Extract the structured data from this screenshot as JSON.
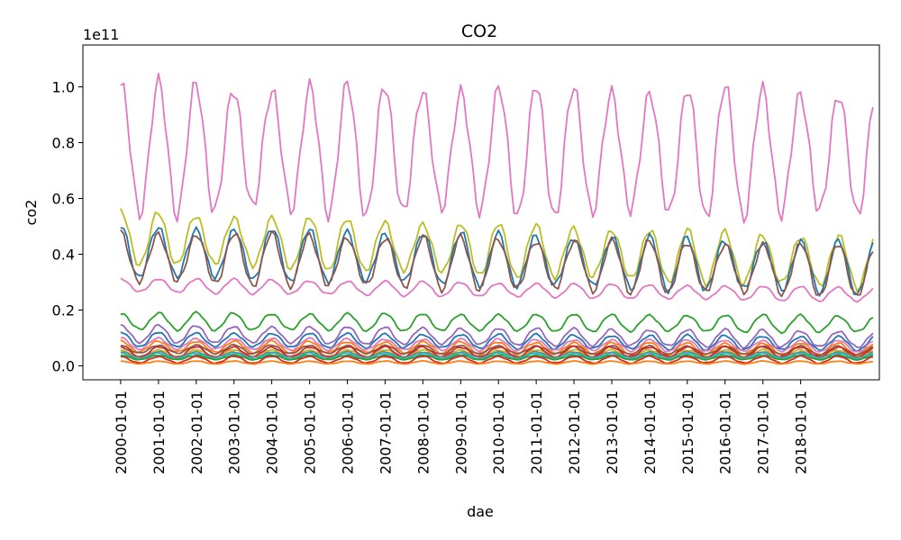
{
  "chart_data": {
    "type": "line",
    "title": "CO2",
    "xlabel": "dae",
    "ylabel": "co2",
    "y_offset_label": "1e11",
    "y_multiplier": 100000000000.0,
    "ylim": [
      -0.05,
      1.15
    ],
    "yticks": [
      0.0,
      0.2,
      0.4,
      0.6,
      0.8,
      1.0
    ],
    "xlim": [
      "1999-01-01",
      "2020-02-01"
    ],
    "xticks": [
      "2000-01-01",
      "2001-01-01",
      "2002-01-01",
      "2003-01-01",
      "2004-01-01",
      "2005-01-01",
      "2006-01-01",
      "2007-01-01",
      "2008-01-01",
      "2009-01-01",
      "2010-01-01",
      "2011-01-01",
      "2012-01-01",
      "2013-01-01",
      "2014-01-01",
      "2015-01-01",
      "2016-01-01",
      "2017-01-01",
      "2018-01-01"
    ],
    "x_start": "2000-01-01",
    "x_end": "2019-12-01",
    "x_frequency": "monthly",
    "grid": false,
    "legend": false,
    "series": [
      {
        "color": "#e377c2",
        "base": 0.78,
        "amp": 0.225,
        "trend": -0.02
      },
      {
        "color": "#bcbd22",
        "base": 0.46,
        "amp": 0.09,
        "trend": -0.09
      },
      {
        "color": "#1f77b4",
        "base": 0.41,
        "amp": 0.09,
        "trend": -0.06
      },
      {
        "color": "#8c564b",
        "base": 0.39,
        "amp": 0.09,
        "trend": -0.05
      },
      {
        "color": "#e377c2",
        "base": 0.29,
        "amp": 0.025,
        "trend": -0.035
      },
      {
        "color": "#2ca02c",
        "base": 0.16,
        "amp": 0.03,
        "trend": -0.01
      },
      {
        "color": "#9467bd",
        "base": 0.115,
        "amp": 0.03,
        "trend": -0.02
      },
      {
        "color": "#1f77b4",
        "base": 0.095,
        "amp": 0.025,
        "trend": -0.015
      },
      {
        "color": "#e377c2",
        "base": 0.08,
        "amp": 0.02,
        "trend": -0.01
      },
      {
        "color": "#ff7f0e",
        "base": 0.07,
        "amp": 0.02,
        "trend": -0.01
      },
      {
        "color": "#8c564b",
        "base": 0.06,
        "amp": 0.015,
        "trend": -0.005
      },
      {
        "color": "#bcbd22",
        "base": 0.045,
        "amp": 0.012,
        "trend": 0.0
      },
      {
        "color": "#d62728",
        "base": 0.05,
        "amp": 0.018,
        "trend": 0.0
      },
      {
        "color": "#7f7f7f",
        "base": 0.04,
        "amp": 0.01,
        "trend": 0.0
      },
      {
        "color": "#17becf",
        "base": 0.035,
        "amp": 0.01,
        "trend": 0.0
      },
      {
        "color": "#2ca02c",
        "base": 0.03,
        "amp": 0.008,
        "trend": 0.0
      },
      {
        "color": "#d62728",
        "base": 0.022,
        "amp": 0.012,
        "trend": 0.0
      },
      {
        "color": "#ff7f0e",
        "base": 0.012,
        "amp": 0.005,
        "trend": 0.0
      }
    ]
  }
}
